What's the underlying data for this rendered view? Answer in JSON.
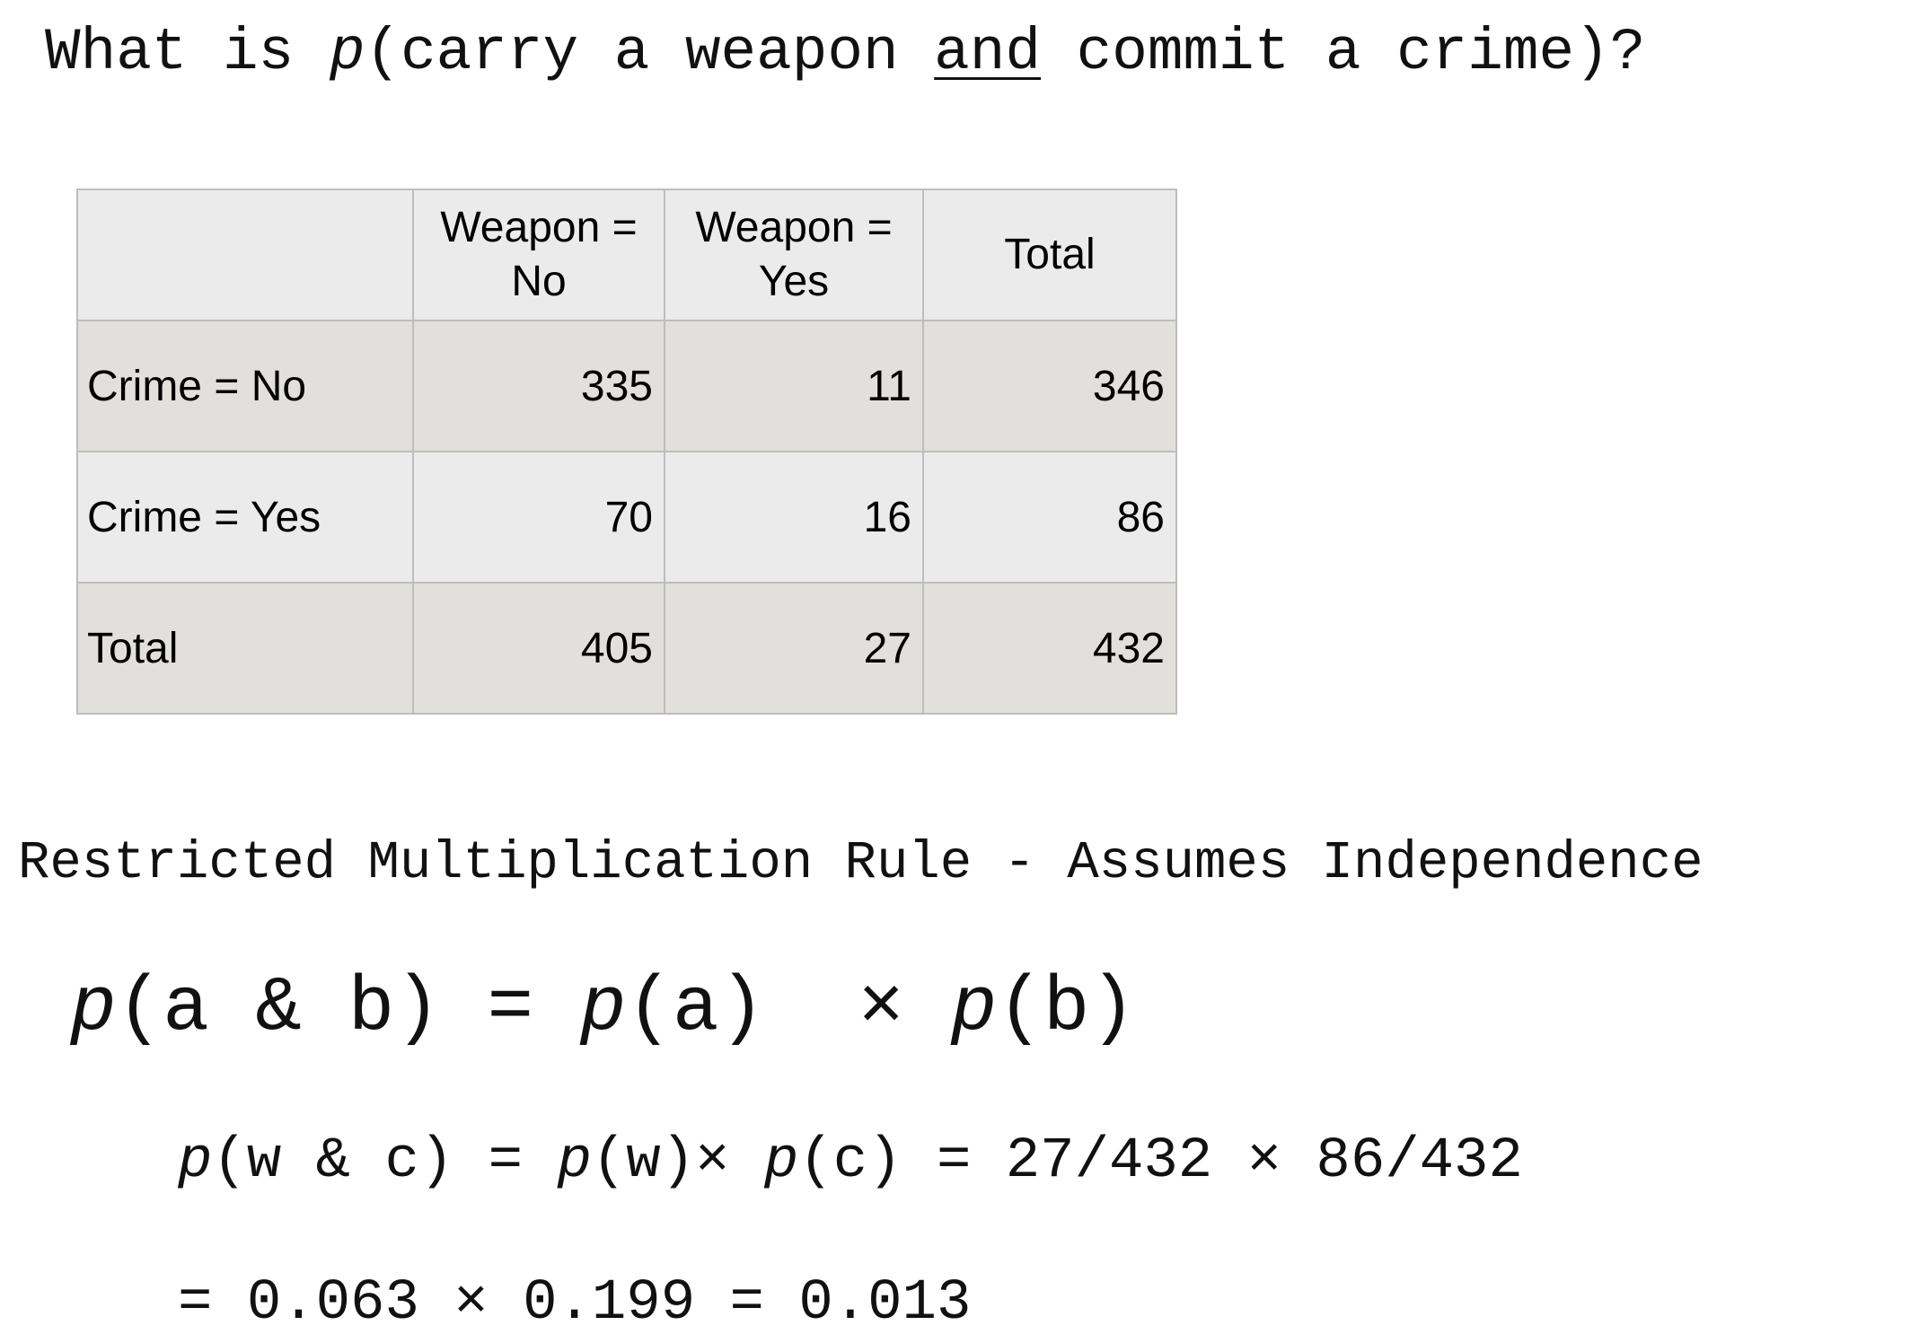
{
  "question": {
    "prefix": "What is ",
    "p": "p",
    "open": "(carry a weapon ",
    "and": "and",
    "rest": " commit a crime)?"
  },
  "table": {
    "headers": [
      "",
      "Weapon = No",
      "Weapon = Yes",
      "Total"
    ],
    "header_lines": [
      [
        "",
        ""
      ],
      [
        "Weapon =",
        "No"
      ],
      [
        "Weapon =",
        "Yes"
      ],
      [
        "Total",
        ""
      ]
    ],
    "rows": [
      {
        "label": "Crime = No",
        "values": [
          "335",
          "11",
          "346"
        ]
      },
      {
        "label": "Crime = Yes",
        "values": [
          "70",
          "16",
          "86"
        ]
      },
      {
        "label": "Total",
        "values": [
          "405",
          "27",
          "432"
        ]
      }
    ]
  },
  "rule_title": "Restricted Multiplication Rule - Assumes Independence",
  "formula_general": {
    "p": "p",
    "lhs": "(a & b) = ",
    "pa": "(a)  × ",
    "pb": "(b)"
  },
  "formula_specific": {
    "p": "p",
    "lhs": "(w & c) = ",
    "pw": "(w)× ",
    "pc": "(c) = 27/432 × 86/432"
  },
  "formula_result": "= 0.063 × 0.199 = 0.013"
}
